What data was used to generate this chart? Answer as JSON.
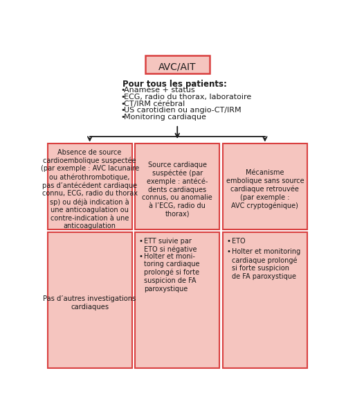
{
  "bg_color": "#ffffff",
  "box_fill": "#f5c5bf",
  "box_edge": "#d94040",
  "top_box_fill": "#f5c5bf",
  "top_box_text": "AVC/AIT",
  "info_title": "Pour tous les patients:",
  "info_bullets": [
    "Anamèse + status",
    "ECG, radio du thorax, laboratoire",
    "CT/IRM cérébral",
    "US carotidien ou angio-CT/IRM",
    "Monitoring cardiaque"
  ],
  "col1_top": "Absence de source\ncardioembolique suspectée\n(par exemple : AVC lacunaire\nou athérothrombotique,\npas d’antécédent cardiaque\nconnu, ECG, radio du thorax\nsp) ou déjà indication à\nune anticoagulation ou\ncontre-indication à une\nanticoagulation",
  "col2_top": "Source cardiaque\nsuspéctée (par\nexemple : antécé-\ndents cardiaques\nconnus, ou anomalie\nà l’ECG, radio du\nthorax)",
  "col3_top": "Mécanisme\nembolique sans source\ncardiaque retrouvée\n(par exemple :\nAVC cryptogénique)",
  "col1_bot": "Pas d’autres investigations\ncardiaques",
  "col2_bot_line1": "ETT suivie par\nETO si négative",
  "col2_bot_line2": "Holter et moni-\ntoring cardiaque\nprolongé si forte\nsuspicion de FA\nparoxystique",
  "col3_bot_line1": "ETO",
  "col3_bot_line2": "Holter et monitoring\ncardiaque prolongé\nsi forte suspicion\nde FA paroxystique",
  "text_color": "#1a1a1a",
  "arrow_color": "#1a1a1a"
}
